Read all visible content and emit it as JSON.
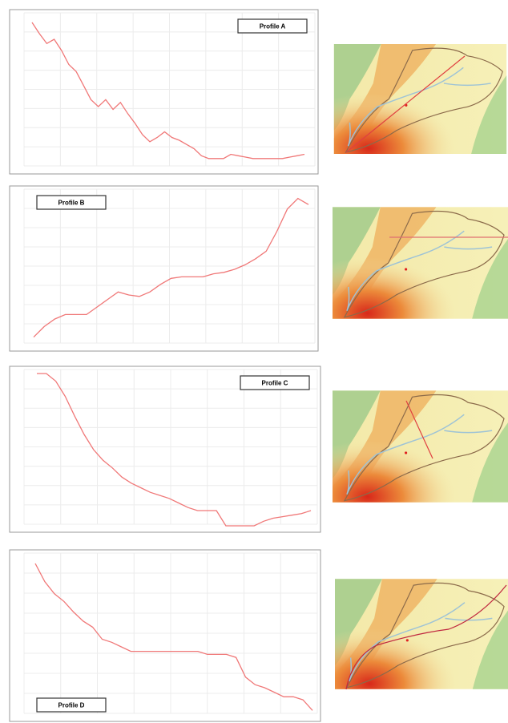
{
  "chart_data": [
    {
      "type": "line",
      "legend": "top-right",
      "grid": true,
      "ylim": [
        0,
        100
      ],
      "series": [
        {
          "name": "Profile A",
          "color": "#f07878",
          "values": [
            100,
            92,
            85,
            88,
            80,
            70,
            65,
            55,
            45,
            40,
            45,
            38,
            43,
            35,
            28,
            20,
            15,
            18,
            22,
            18,
            16,
            13,
            10,
            5,
            3,
            3,
            3,
            6,
            5,
            4,
            3,
            3,
            3,
            3,
            3,
            4,
            5,
            6
          ]
        }
      ]
    },
    {
      "type": "line",
      "legend": "top-left",
      "grid": true,
      "ylim": [
        0,
        100
      ],
      "series": [
        {
          "name": "Profile B",
          "color": "#f07878",
          "values": [
            5,
            12,
            17,
            20,
            20,
            20,
            25,
            30,
            35,
            33,
            32,
            35,
            40,
            44,
            45,
            45,
            45,
            47,
            48,
            50,
            53,
            57,
            62,
            75,
            90,
            97,
            93
          ]
        }
      ]
    },
    {
      "type": "line",
      "legend": "top-right",
      "grid": true,
      "ylim": [
        0,
        100
      ],
      "series": [
        {
          "name": "Profile C",
          "color": "#f07878",
          "values": [
            100,
            100,
            95,
            85,
            72,
            60,
            50,
            43,
            38,
            32,
            28,
            25,
            22,
            20,
            18,
            15,
            12,
            10,
            10,
            10,
            0,
            0,
            0,
            0,
            3,
            5,
            6,
            7,
            8,
            10
          ]
        }
      ]
    },
    {
      "type": "line",
      "legend": "bottom-left",
      "grid": true,
      "ylim": [
        0,
        100
      ],
      "series": [
        {
          "name": "Profile D",
          "color": "#f07878",
          "values": [
            100,
            88,
            80,
            75,
            68,
            62,
            58,
            50,
            48,
            45,
            42,
            42,
            42,
            42,
            42,
            42,
            42,
            42,
            40,
            40,
            40,
            38,
            25,
            20,
            18,
            15,
            12,
            12,
            10,
            3
          ]
        }
      ]
    }
  ]
}
